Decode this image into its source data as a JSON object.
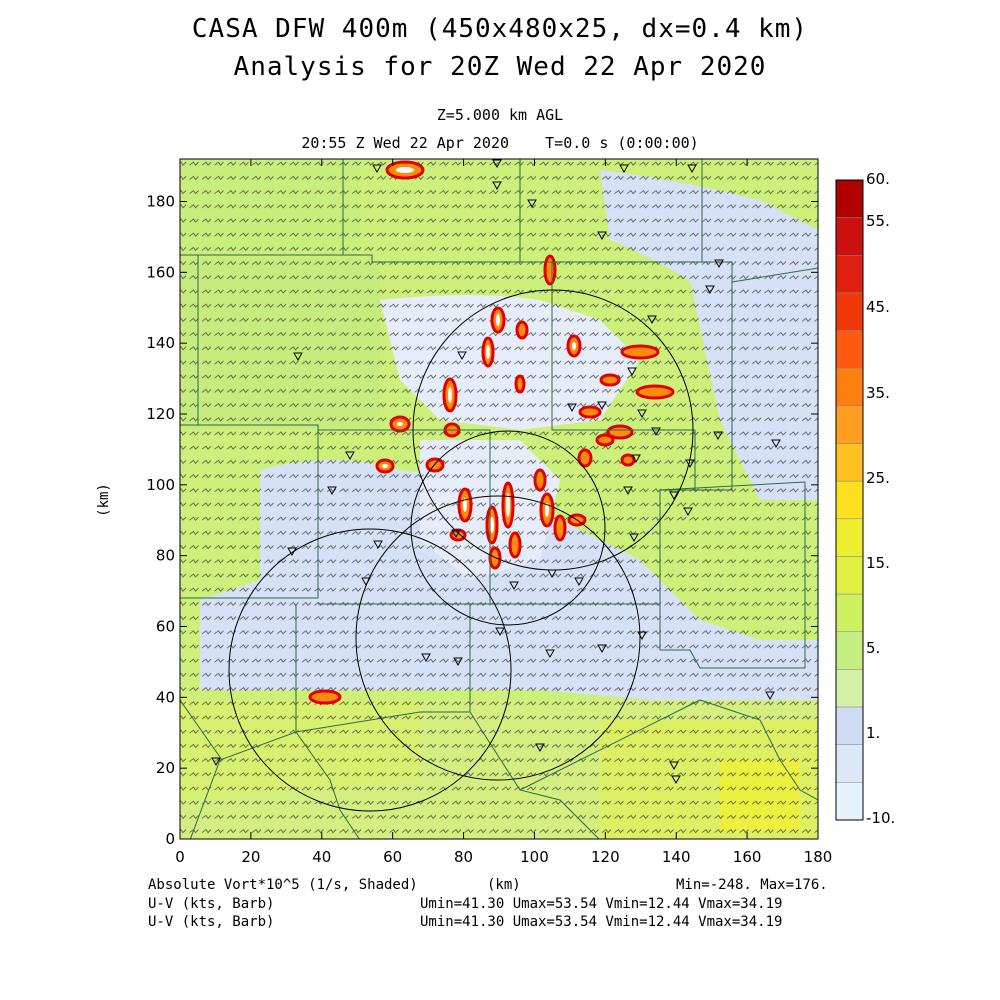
{
  "header": {
    "title_line1": "CASA DFW 400m (450x480x25, dx=0.4 km)",
    "title_line2": "Analysis for 20Z Wed 22 Apr 2020",
    "level": "Z=5.000 km AGL",
    "time_line": "20:55 Z Wed 22 Apr 2020    T=0.0 s (0:00:00)"
  },
  "axes": {
    "x_label": "(km)",
    "y_label": "(km)",
    "x_ticks": [
      "0",
      "20",
      "40",
      "60",
      "80",
      "100",
      "120",
      "140",
      "160",
      "180"
    ],
    "y_ticks": [
      "0",
      "20",
      "40",
      "60",
      "80",
      "100",
      "120",
      "140",
      "160",
      "180"
    ],
    "x_range": [
      0,
      180
    ],
    "y_range": [
      0,
      192
    ]
  },
  "colorbar": {
    "labels": [
      "60.",
      "55.",
      "45.",
      "35.",
      "25.",
      "15.",
      "5.",
      "1.",
      "-10."
    ],
    "colors": [
      "#b00000",
      "#cc1010",
      "#e02010",
      "#f03808",
      "#ff5a10",
      "#ff7e10",
      "#ff9e20",
      "#ffc020",
      "#ffe020",
      "#eeee30",
      "#e0f040",
      "#ccf060",
      "#c4ee80",
      "#d6f0a8",
      "#d0dcf4",
      "#dce8f8",
      "#e6f2fc"
    ]
  },
  "footer": {
    "field_label": "Absolute Vort*10^5 (1/s, Shaded)",
    "x_unit": "(km)",
    "minmax": "Min=-248. Max=176.",
    "wind1_label": "U-V (kts, Barb)",
    "wind1_stats": "Umin=41.30 Umax=53.54 Vmin=12.44 Vmax=34.19",
    "wind2_label": "U-V (kts, Barb)",
    "wind2_stats": "Umin=41.30 Umax=53.54 Vmin=12.44 Vmax=34.19"
  },
  "map_colors": {
    "background_green": "#ccf07a",
    "light_blue": "#d6e0f6",
    "yellow_green": "#e4f058",
    "county_lines": "#2e6a4a"
  }
}
